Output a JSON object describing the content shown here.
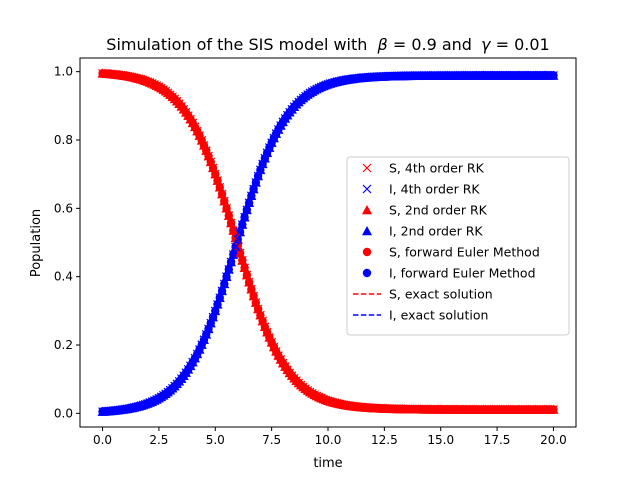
{
  "chart_data": {
    "type": "scatter",
    "title_prefix": "Simulation of the SIS model with",
    "title_beta_symbol": "β",
    "title_beta_value": " = 0.9 and ",
    "title_gamma_symbol": "γ",
    "title_gamma_value": " = 0.01",
    "xlabel": "time",
    "ylabel": "Population",
    "xlim": [
      -1.0,
      21.0
    ],
    "ylim": [
      -0.04,
      1.04
    ],
    "x_ticks": [
      0.0,
      2.5,
      5.0,
      7.5,
      10.0,
      12.5,
      15.0,
      17.5,
      20.0
    ],
    "x_tick_labels": [
      "0.0",
      "2.5",
      "5.0",
      "7.5",
      "10.0",
      "12.5",
      "15.0",
      "17.5",
      "20.0"
    ],
    "y_ticks": [
      0.0,
      0.2,
      0.4,
      0.6,
      0.8,
      1.0
    ],
    "y_tick_labels": [
      "0.0",
      "0.2",
      "0.4",
      "0.6",
      "0.8",
      "1.0"
    ],
    "grid": false,
    "legend_position": "center-right",
    "model": {
      "beta": 0.9,
      "gamma": 0.01,
      "I0": 0.005,
      "t_start": 0,
      "t_end": 20,
      "dt": 0.1
    },
    "series": [
      {
        "name": "S, 4th order RK",
        "marker": "x",
        "variable": "S",
        "color": "#ff0000"
      },
      {
        "name": "I, 4th order RK",
        "marker": "x",
        "variable": "I",
        "color": "#0000ff"
      },
      {
        "name": "S, 2nd order RK",
        "marker": "triangle",
        "variable": "S",
        "color": "#ff0000"
      },
      {
        "name": "I, 2nd order RK",
        "marker": "triangle",
        "variable": "I",
        "color": "#0000ff"
      },
      {
        "name": "S, forward Euler Method",
        "marker": "circle",
        "variable": "S",
        "color": "#ff0000"
      },
      {
        "name": "I, forward Euler Method",
        "marker": "circle",
        "variable": "I",
        "color": "#0000ff"
      },
      {
        "name": "S, exact solution",
        "marker": "dashed-line",
        "variable": "S",
        "color": "#ff0000"
      },
      {
        "name": "I, exact solution",
        "marker": "dashed-line",
        "variable": "I",
        "color": "#0000ff"
      }
    ]
  }
}
